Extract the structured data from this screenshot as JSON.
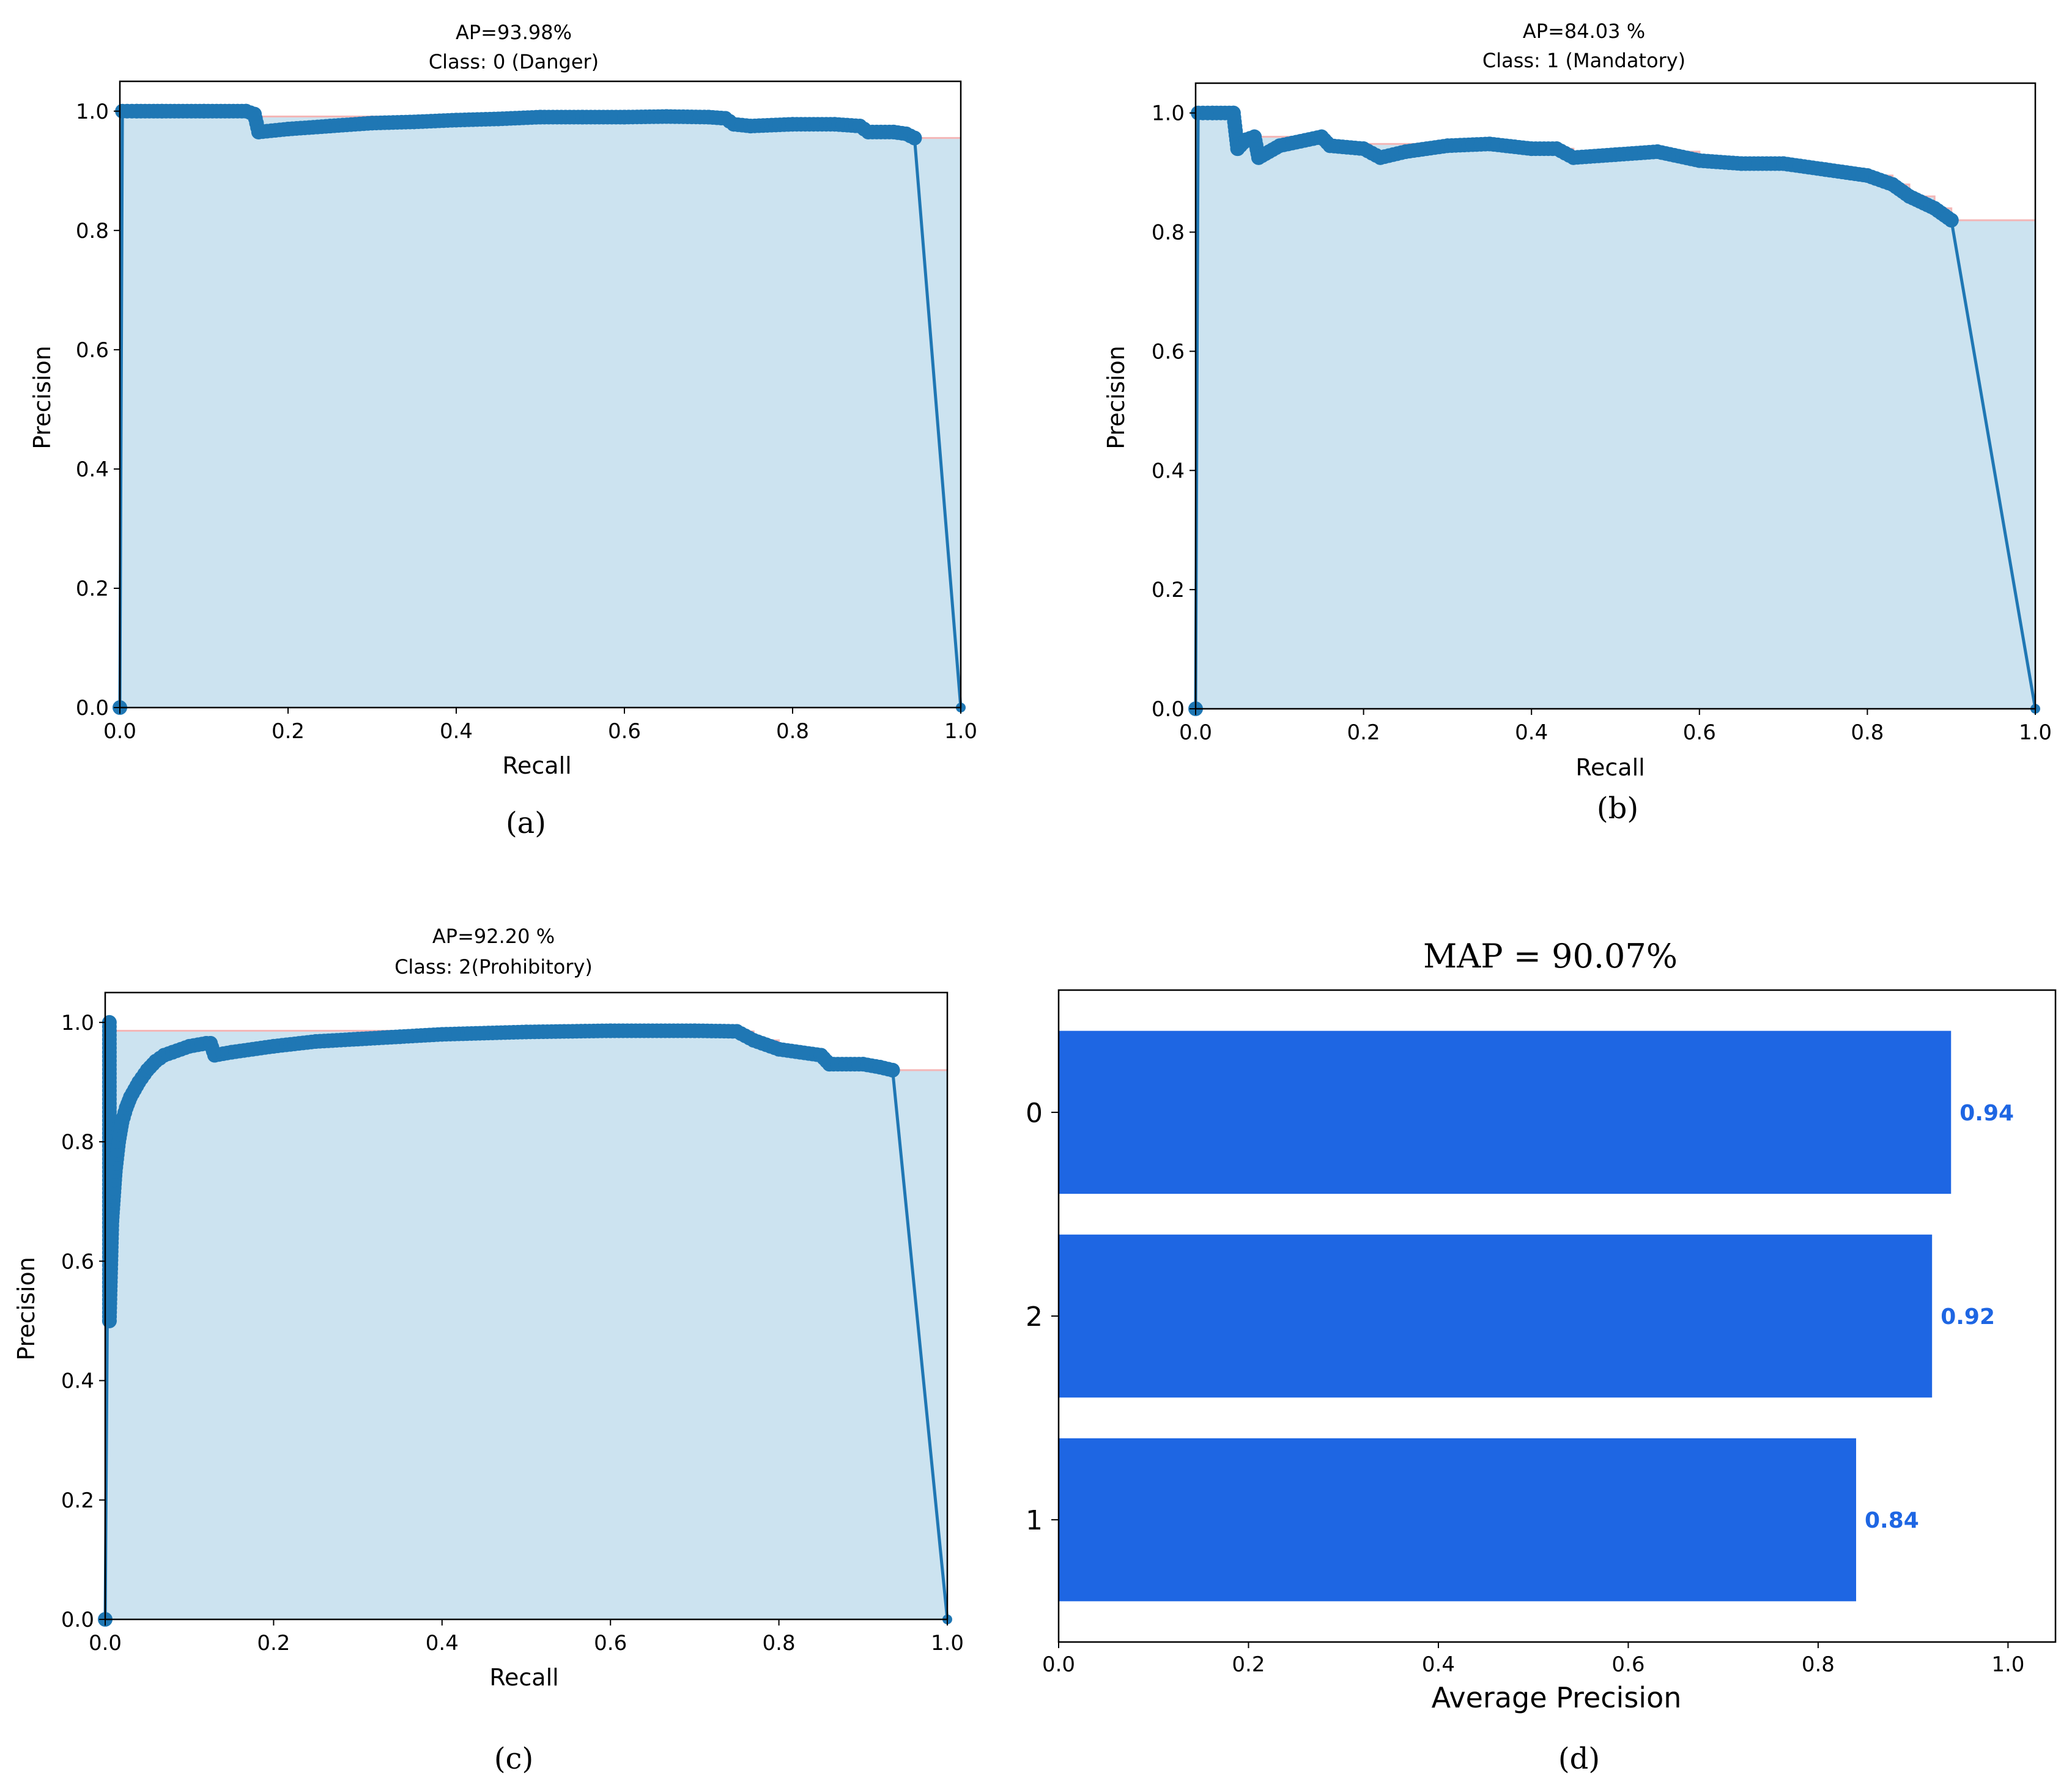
{
  "colors": {
    "curve": "#1f77b4",
    "fill": "#cce3f0",
    "interp": "#f4b6b6",
    "bar": "#1e66e3",
    "bar_label": "#1e66e3"
  },
  "chart_data": [
    {
      "id": "a",
      "type": "line",
      "caption": "(a)",
      "title": "AP=93.98%",
      "subtitle": "Class: 0 (Danger)",
      "xlabel": "Recall",
      "ylabel": "Precision",
      "xlim": [
        0,
        1
      ],
      "ylim": [
        0,
        1.05
      ],
      "xticks": [
        "0.0",
        "0.2",
        "0.4",
        "0.6",
        "0.8",
        "1.0"
      ],
      "yticks": [
        "0.0",
        "0.2",
        "0.4",
        "0.6",
        "0.8",
        "1.0"
      ],
      "recall": [
        0.0,
        0.003,
        0.02,
        0.05,
        0.1,
        0.15,
        0.16,
        0.165,
        0.2,
        0.25,
        0.3,
        0.35,
        0.4,
        0.45,
        0.5,
        0.55,
        0.6,
        0.65,
        0.7,
        0.72,
        0.73,
        0.75,
        0.8,
        0.85,
        0.88,
        0.89,
        0.92,
        0.935,
        0.945,
        1.0
      ],
      "precision": [
        0.0,
        1.0,
        1.0,
        1.0,
        1.0,
        1.0,
        0.995,
        0.965,
        0.97,
        0.975,
        0.98,
        0.982,
        0.985,
        0.987,
        0.99,
        0.99,
        0.99,
        0.991,
        0.99,
        0.988,
        0.978,
        0.975,
        0.978,
        0.978,
        0.975,
        0.965,
        0.965,
        0.962,
        0.955,
        0.0
      ]
    },
    {
      "id": "b",
      "type": "line",
      "caption": "(b)",
      "title": "AP=84.03 %",
      "subtitle": "Class: 1 (Mandatory)",
      "xlabel": "Recall",
      "ylabel": "Precision",
      "xlim": [
        0,
        1
      ],
      "ylim": [
        0,
        1.05
      ],
      "xticks": [
        "0.0",
        "0.2",
        "0.4",
        "0.6",
        "0.8",
        "1.0"
      ],
      "yticks": [
        "0.0",
        "0.2",
        "0.4",
        "0.6",
        "0.8",
        "1.0"
      ],
      "recall": [
        0.0,
        0.003,
        0.02,
        0.045,
        0.05,
        0.06,
        0.07,
        0.075,
        0.1,
        0.15,
        0.16,
        0.2,
        0.22,
        0.25,
        0.3,
        0.35,
        0.4,
        0.43,
        0.45,
        0.5,
        0.55,
        0.6,
        0.65,
        0.7,
        0.75,
        0.8,
        0.83,
        0.85,
        0.88,
        0.9,
        1.0
      ],
      "precision": [
        0.0,
        1.0,
        1.0,
        1.0,
        0.94,
        0.955,
        0.96,
        0.925,
        0.945,
        0.96,
        0.945,
        0.94,
        0.925,
        0.935,
        0.945,
        0.948,
        0.94,
        0.94,
        0.925,
        0.93,
        0.935,
        0.92,
        0.915,
        0.915,
        0.905,
        0.895,
        0.88,
        0.86,
        0.84,
        0.82,
        0.0
      ]
    },
    {
      "id": "c",
      "type": "line",
      "caption": "(c)",
      "title": "AP=92.20 %",
      "subtitle": "Class: 2(Prohibitory)",
      "xlabel": "Recall",
      "ylabel": "Precision",
      "xlim": [
        0,
        1
      ],
      "ylim": [
        0,
        1.05
      ],
      "xticks": [
        "0.0",
        "0.2",
        "0.4",
        "0.6",
        "0.8",
        "1.0"
      ],
      "yticks": [
        "0.0",
        "0.2",
        "0.4",
        "0.6",
        "0.8",
        "1.0"
      ],
      "recall": [
        0.0,
        0.005,
        0.005,
        0.008,
        0.012,
        0.016,
        0.02,
        0.025,
        0.03,
        0.04,
        0.05,
        0.06,
        0.07,
        0.08,
        0.1,
        0.12,
        0.125,
        0.13,
        0.15,
        0.2,
        0.25,
        0.3,
        0.35,
        0.4,
        0.5,
        0.6,
        0.7,
        0.75,
        0.77,
        0.8,
        0.85,
        0.86,
        0.9,
        0.92,
        0.935,
        1.0
      ],
      "precision": [
        0.0,
        1.0,
        0.5,
        0.667,
        0.75,
        0.8,
        0.833,
        0.857,
        0.875,
        0.9,
        0.92,
        0.935,
        0.945,
        0.95,
        0.96,
        0.965,
        0.965,
        0.945,
        0.95,
        0.96,
        0.968,
        0.972,
        0.976,
        0.98,
        0.984,
        0.986,
        0.986,
        0.985,
        0.97,
        0.955,
        0.945,
        0.93,
        0.93,
        0.925,
        0.92,
        0.0
      ]
    },
    {
      "id": "d",
      "type": "bar",
      "orientation": "horizontal",
      "caption": "(d)",
      "title": "MAP = 90.07%",
      "xlabel": "Average Precision",
      "ylabel": "",
      "xlim": [
        0,
        1.05
      ],
      "xticks": [
        "0.0",
        "0.2",
        "0.4",
        "0.6",
        "0.8",
        "1.0"
      ],
      "categories": [
        "0",
        "2",
        "1"
      ],
      "values": [
        0.94,
        0.92,
        0.84
      ],
      "labels": [
        "0.94",
        "0.92",
        "0.84"
      ]
    }
  ]
}
